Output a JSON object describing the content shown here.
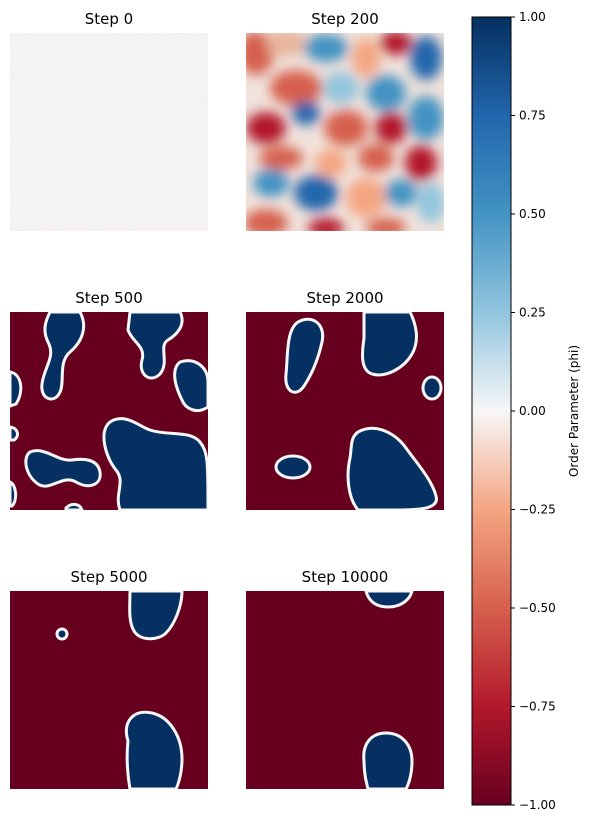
{
  "chart_data": {
    "type": "heatmap",
    "colormap": "RdBu",
    "panels": [
      {
        "title": "Step 0",
        "kind": "noise"
      },
      {
        "title": "Step 200",
        "kind": "field"
      },
      {
        "title": "Step 500",
        "kind": "domains"
      },
      {
        "title": "Step 2000",
        "kind": "domains"
      },
      {
        "title": "Step 5000",
        "kind": "domains"
      },
      {
        "title": "Step 10000",
        "kind": "domains"
      }
    ],
    "colorbar": {
      "label": "Order Parameter (phi)",
      "range": [
        -1.0,
        1.0
      ],
      "ticks": [
        1.0,
        0.75,
        0.5,
        0.25,
        0.0,
        -0.25,
        -0.5,
        -0.75,
        -1.0
      ],
      "tick_labels": [
        "1.00",
        "0.75",
        "0.50",
        "0.25",
        "0.00",
        "−0.25",
        "−0.50",
        "−0.75",
        "−1.00"
      ]
    },
    "background_phase": -1.0,
    "domain_phase": 1.0
  }
}
